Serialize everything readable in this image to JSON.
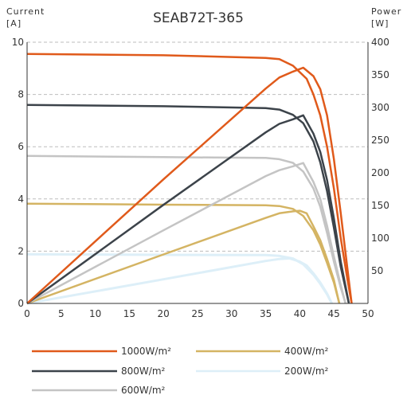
{
  "chart_data": {
    "type": "line",
    "title": "SEAB72T-365",
    "left_axis": {
      "label_line1": "Current",
      "label_line2": "[A]",
      "min": 0,
      "max": 10,
      "ticks": [
        0,
        2,
        4,
        6,
        8,
        10
      ]
    },
    "right_axis": {
      "label_line1": "Power",
      "label_line2": "[W]",
      "min": 0,
      "max": 400,
      "ticks": [
        50,
        100,
        150,
        200,
        250,
        300,
        350,
        400
      ]
    },
    "x_axis": {
      "min": 0,
      "max": 50,
      "ticks": [
        0,
        5,
        10,
        15,
        20,
        25,
        30,
        35,
        40,
        45,
        50
      ]
    },
    "grid": "dashed horizontal at left-axis ticks",
    "series": [
      {
        "name": "1000W/m²",
        "color": "#E05A1B",
        "current": [
          [
            0,
            9.55
          ],
          [
            20,
            9.5
          ],
          [
            35,
            9.4
          ],
          [
            37,
            9.35
          ],
          [
            39,
            9.1
          ],
          [
            41,
            8.6
          ],
          [
            42,
            8.0
          ],
          [
            43,
            7.2
          ],
          [
            44,
            6.0
          ],
          [
            45,
            4.4
          ],
          [
            46,
            2.5
          ],
          [
            47,
            0.9
          ],
          [
            47.6,
            0
          ]
        ],
        "power": [
          [
            0,
            0
          ],
          [
            20,
            190
          ],
          [
            35,
            329
          ],
          [
            37,
            346
          ],
          [
            39,
            355
          ],
          [
            40.5,
            361
          ],
          [
            42,
            348
          ],
          [
            43,
            328
          ],
          [
            44,
            288
          ],
          [
            45,
            221
          ],
          [
            46,
            138
          ],
          [
            47,
            52
          ],
          [
            47.6,
            0
          ]
        ]
      },
      {
        "name": "800W/m²",
        "color": "#3C434A",
        "current": [
          [
            0,
            7.6
          ],
          [
            20,
            7.55
          ],
          [
            35,
            7.48
          ],
          [
            37,
            7.42
          ],
          [
            39,
            7.22
          ],
          [
            40.5,
            6.9
          ],
          [
            42,
            6.2
          ],
          [
            43,
            5.4
          ],
          [
            44,
            4.3
          ],
          [
            45,
            2.9
          ],
          [
            46,
            1.4
          ],
          [
            47.2,
            0
          ]
        ],
        "power": [
          [
            0,
            0
          ],
          [
            20,
            151
          ],
          [
            35,
            262
          ],
          [
            37,
            275
          ],
          [
            39,
            282
          ],
          [
            40.5,
            288
          ],
          [
            42,
            260
          ],
          [
            43,
            232
          ],
          [
            44,
            189
          ],
          [
            45,
            130
          ],
          [
            46,
            64
          ],
          [
            47.2,
            0
          ]
        ]
      },
      {
        "name": "600W/m²",
        "color": "#C4C4C4",
        "current": [
          [
            0,
            5.65
          ],
          [
            20,
            5.6
          ],
          [
            35,
            5.57
          ],
          [
            37,
            5.52
          ],
          [
            39,
            5.38
          ],
          [
            40.5,
            5.05
          ],
          [
            42,
            4.4
          ],
          [
            43,
            3.7
          ],
          [
            44,
            2.7
          ],
          [
            45,
            1.6
          ],
          [
            46,
            0.6
          ],
          [
            46.7,
            0
          ]
        ],
        "power": [
          [
            0,
            0
          ],
          [
            20,
            112
          ],
          [
            35,
            195
          ],
          [
            37,
            204
          ],
          [
            39,
            210
          ],
          [
            40.5,
            215
          ],
          [
            42,
            186
          ],
          [
            43,
            160
          ],
          [
            44,
            119
          ],
          [
            45,
            72
          ],
          [
            46,
            28
          ],
          [
            46.7,
            0
          ]
        ]
      },
      {
        "name": "400W/m²",
        "color": "#D4B463",
        "current": [
          [
            0,
            3.82
          ],
          [
            20,
            3.78
          ],
          [
            35,
            3.76
          ],
          [
            37,
            3.73
          ],
          [
            39,
            3.62
          ],
          [
            40.5,
            3.35
          ],
          [
            42,
            2.8
          ],
          [
            43,
            2.25
          ],
          [
            44,
            1.55
          ],
          [
            45,
            0.8
          ],
          [
            45.8,
            0
          ]
        ],
        "power": [
          [
            0,
            0
          ],
          [
            20,
            75
          ],
          [
            35,
            131
          ],
          [
            37,
            138
          ],
          [
            39,
            141
          ],
          [
            40,
            142
          ],
          [
            41,
            138
          ],
          [
            42,
            118
          ],
          [
            43,
            97
          ],
          [
            44,
            68
          ],
          [
            45,
            36
          ],
          [
            45.8,
            0
          ]
        ]
      },
      {
        "name": "200W/m²",
        "color": "#DDEFF8",
        "current": [
          [
            0,
            1.88
          ],
          [
            20,
            1.86
          ],
          [
            35,
            1.85
          ],
          [
            37,
            1.82
          ],
          [
            39,
            1.72
          ],
          [
            40.5,
            1.5
          ],
          [
            42,
            1.1
          ],
          [
            43,
            0.75
          ],
          [
            44,
            0.35
          ],
          [
            44.7,
            0
          ]
        ],
        "power": [
          [
            0,
            0
          ],
          [
            20,
            37
          ],
          [
            35,
            65
          ],
          [
            37,
            68
          ],
          [
            38.5,
            69
          ],
          [
            40,
            64
          ],
          [
            41,
            58
          ],
          [
            42,
            46
          ],
          [
            43,
            32
          ],
          [
            44,
            15
          ],
          [
            44.7,
            0
          ]
        ]
      }
    ]
  },
  "legend": {
    "col1": [
      "1000W/m²",
      "800W/m²",
      "600W/m²"
    ],
    "col2": [
      "400W/m²",
      "200W/m²"
    ]
  }
}
